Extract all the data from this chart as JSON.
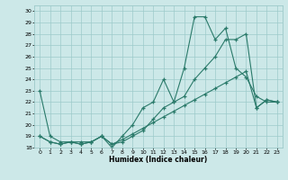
{
  "title": "",
  "xlabel": "Humidex (Indice chaleur)",
  "xlim": [
    -0.5,
    23.5
  ],
  "ylim": [
    18,
    30.5
  ],
  "xticks": [
    0,
    1,
    2,
    3,
    4,
    5,
    6,
    7,
    8,
    9,
    10,
    11,
    12,
    13,
    14,
    15,
    16,
    17,
    18,
    19,
    20,
    21,
    22,
    23
  ],
  "yticks": [
    18,
    19,
    20,
    21,
    22,
    23,
    24,
    25,
    26,
    27,
    28,
    29,
    30
  ],
  "bg_color": "#cce8e8",
  "line_color": "#2a7a6a",
  "grid_color": "#9dcaca",
  "line1_x": [
    0,
    1,
    2,
    3,
    4,
    5,
    6,
    7,
    8,
    9,
    10,
    11,
    12,
    13,
    14,
    15,
    16,
    17,
    18,
    19,
    20,
    21,
    22,
    23
  ],
  "line1_y": [
    23,
    19,
    18.5,
    18.5,
    18.5,
    18.5,
    19,
    18,
    19,
    20,
    21.5,
    22,
    24,
    22,
    25,
    29.5,
    29.5,
    27.5,
    28.5,
    25,
    24.2,
    22.5,
    22,
    22
  ],
  "line2_x": [
    0,
    1,
    2,
    3,
    4,
    5,
    6,
    7,
    8,
    9,
    10,
    11,
    12,
    13,
    14,
    15,
    16,
    17,
    18,
    19,
    20,
    21,
    22,
    23
  ],
  "line2_y": [
    19,
    18.5,
    18.3,
    18.5,
    18.3,
    18.5,
    19,
    18.3,
    18.5,
    19,
    19.5,
    20.5,
    21.5,
    22,
    22.5,
    24,
    25,
    26,
    27.5,
    27.5,
    28,
    21.5,
    22.2,
    22
  ],
  "line3_x": [
    0,
    1,
    2,
    3,
    4,
    5,
    6,
    7,
    8,
    9,
    10,
    11,
    12,
    13,
    14,
    15,
    16,
    17,
    18,
    19,
    20,
    21,
    22,
    23
  ],
  "line3_y": [
    19,
    18.5,
    18.3,
    18.5,
    18.3,
    18.5,
    19,
    18.3,
    18.7,
    19.2,
    19.7,
    20.2,
    20.7,
    21.2,
    21.7,
    22.2,
    22.7,
    23.2,
    23.7,
    24.2,
    24.7,
    21.5,
    22.2,
    22
  ]
}
